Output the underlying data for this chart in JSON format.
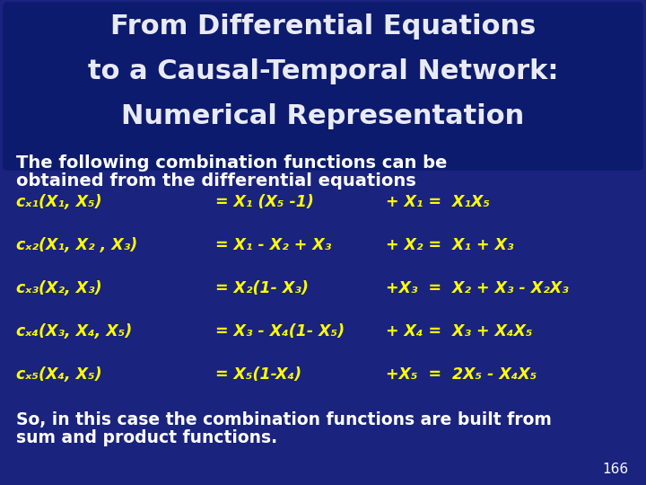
{
  "bg_color": "#1a237e",
  "title_bg_color": "#0d1b6e",
  "title_color": "#e8eaf6",
  "body_color": "#ffff00",
  "white_color": "#ffffff",
  "title_lines": [
    "From Differential Equations",
    "to a Causal-Temporal Network:",
    "Numerical Representation"
  ],
  "subtitle_line1": "The following combination functions can be",
  "subtitle_line2": "obtained from the differential equations",
  "eq_left": [
    "cₓ₁(X₁, X₅)",
    "cₓ₂(X₁, X₂ , X₃)",
    "cₓ₃(X₂, X₃)",
    "cₓ₄(X₃, X₄, X₅)",
    "cₓ₅(X₄, X₅)"
  ],
  "eq_mid": [
    "= X₁ (X₅ -1)",
    "= X₁ - X₂ + X₃",
    "= X₂(1- X₃)",
    "= X₃ - X₄(1- X₅)",
    "= X₅(1-X₄)"
  ],
  "eq_right": [
    "+ X₁ =  X₁X₅",
    "+ X₂ =  X₁ + X₃",
    "+X₃  =  X₂ + X₃ - X₂X₃",
    "+ X₄ =  X₃ + X₄X₅",
    "+X₅  =  2X₅ - X₄X₅"
  ],
  "footer_line1": "So, in this case the combination functions are built from",
  "footer_line2": "sum and product functions.",
  "page_number": "166",
  "title_fontsize": 22,
  "subtitle_fontsize": 14,
  "eq_fontsize": 12.5,
  "footer_fontsize": 13.5,
  "page_fontsize": 11
}
